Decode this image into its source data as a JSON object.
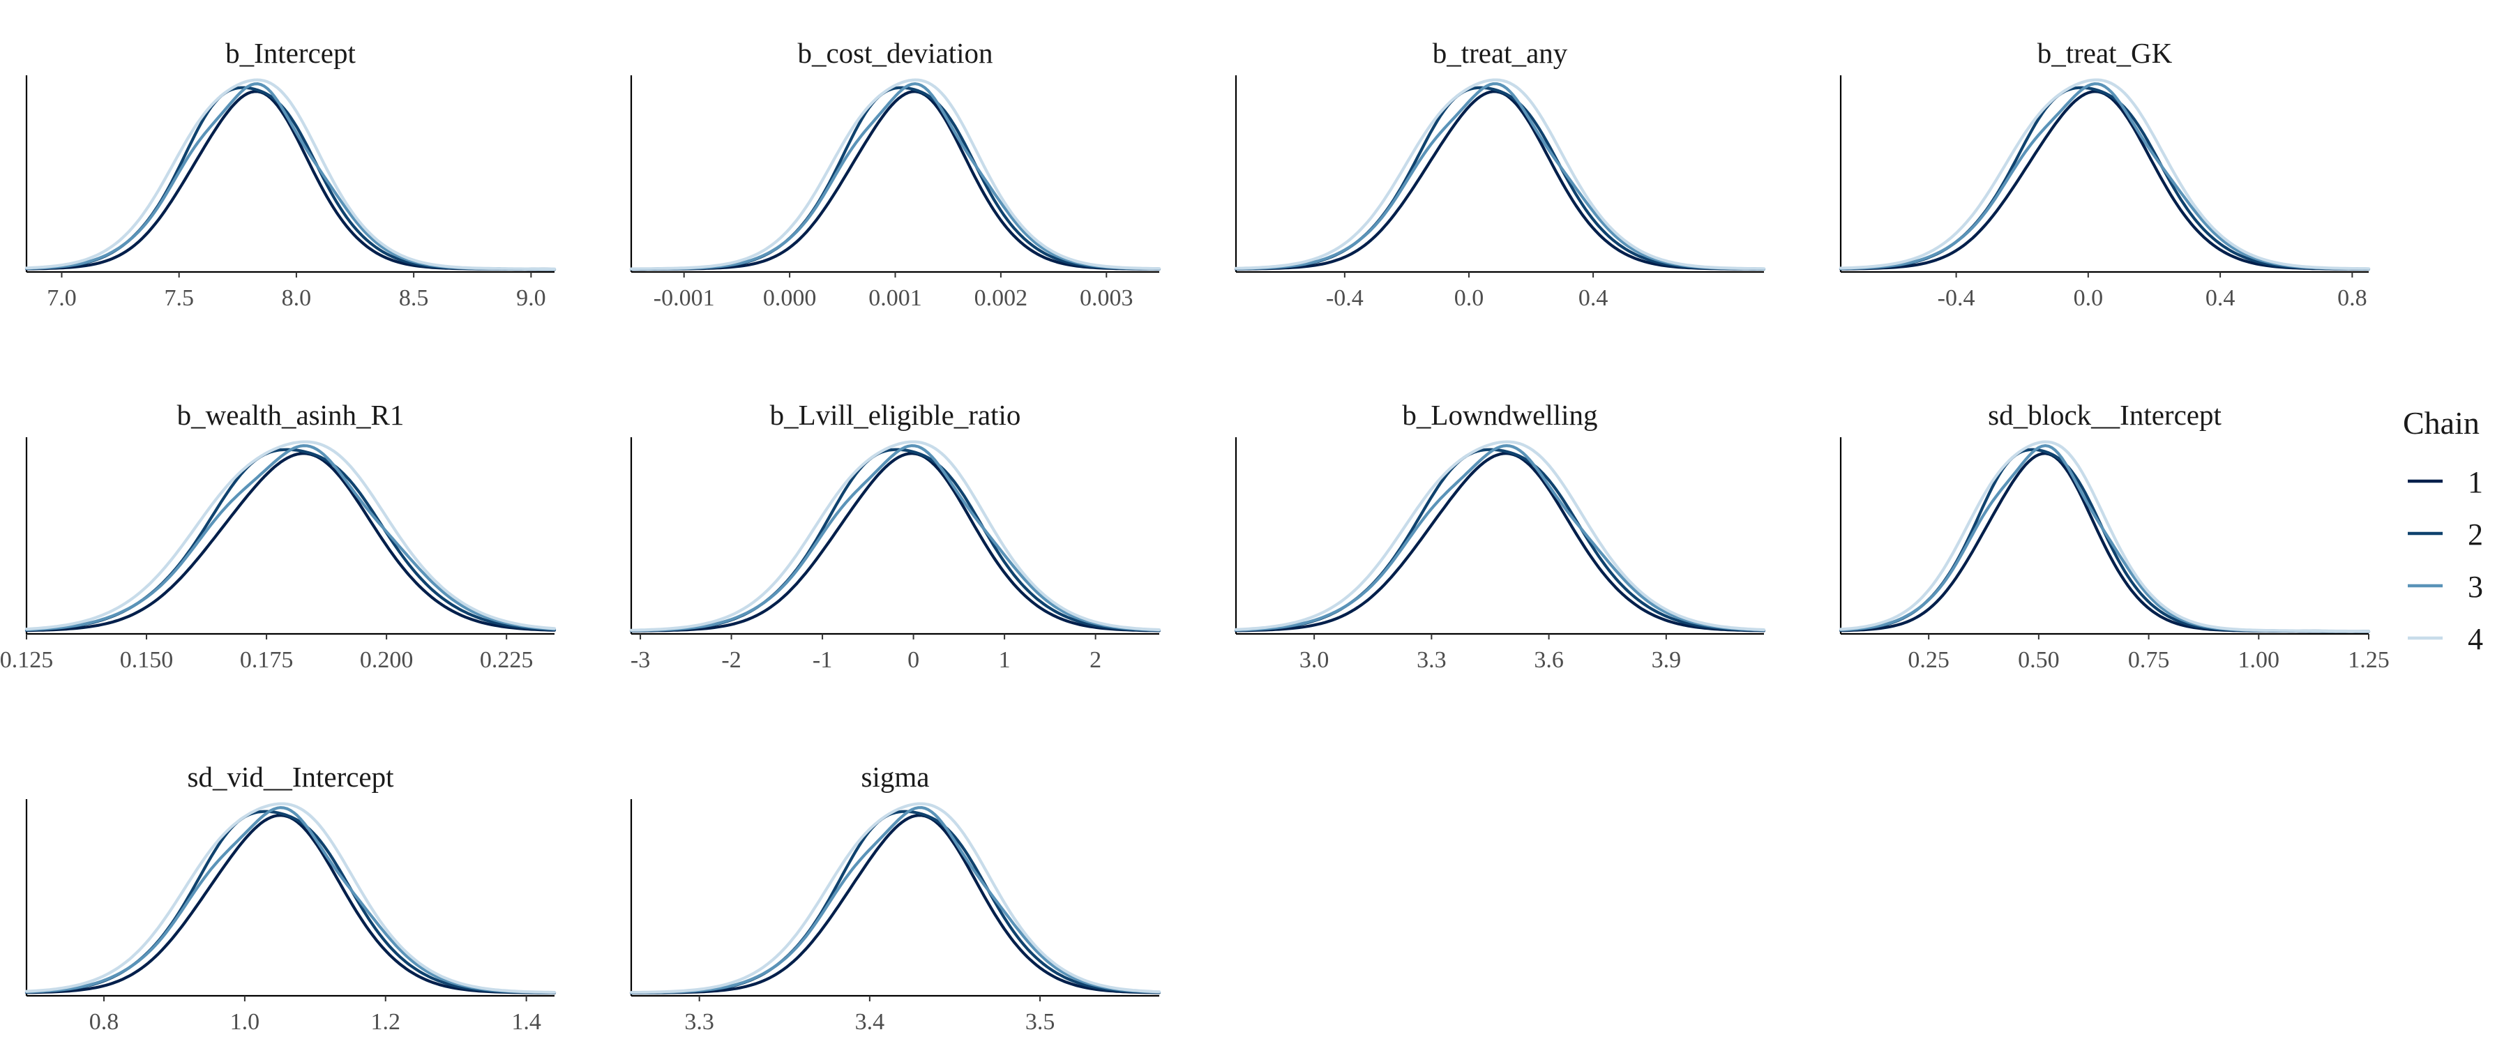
{
  "chart_data": [
    {
      "type": "line",
      "title": "b_Intercept",
      "xlim": [
        6.85,
        9.1
      ],
      "ticks": [
        7.0,
        7.5,
        8.0,
        8.5,
        9.0
      ],
      "tick_labels": [
        "7.0",
        "7.5",
        "8.0",
        "8.5",
        "9.0"
      ],
      "mean": 7.8,
      "sd": 0.26,
      "xmin": 6.85,
      "xmax": 9.1
    },
    {
      "type": "line",
      "title": "b_cost_deviation",
      "xlim": [
        -0.0015,
        0.0035
      ],
      "ticks": [
        -0.001,
        0.0,
        0.001,
        0.002,
        0.003
      ],
      "tick_labels": [
        "-0.001",
        "0.000",
        "0.001",
        "0.002",
        "0.003"
      ],
      "mean": 0.00112,
      "sd": 0.00058,
      "xmin": -0.0015,
      "xmax": 0.0035
    },
    {
      "type": "line",
      "title": "b_treat_any",
      "xlim": [
        -0.75,
        0.95
      ],
      "ticks": [
        -0.4,
        0.0,
        0.4
      ],
      "tick_labels": [
        "-0.4",
        "0.0",
        "0.4"
      ],
      "mean": 0.06,
      "sd": 0.21,
      "xmin": -0.75,
      "xmax": 0.95
    },
    {
      "type": "line",
      "title": "b_treat_GK",
      "xlim": [
        -0.75,
        0.85
      ],
      "ticks": [
        -0.4,
        0.0,
        0.4,
        0.8
      ],
      "tick_labels": [
        "-0.4",
        "0.0",
        "0.4",
        "0.8"
      ],
      "mean": 0.0,
      "sd": 0.2,
      "xmin": -0.75,
      "xmax": 0.85
    },
    {
      "type": "line",
      "title": "b_wealth_asinh_R1",
      "xlim": [
        0.125,
        0.235
      ],
      "ticks": [
        0.125,
        0.15,
        0.175,
        0.2,
        0.225
      ],
      "tick_labels": [
        "0.125",
        "0.150",
        "0.175",
        "0.200",
        "0.225"
      ],
      "mean": 0.181,
      "sd": 0.0165,
      "xmin": 0.125,
      "xmax": 0.235
    },
    {
      "type": "line",
      "title": "b_Lvill_eligible_ratio",
      "xlim": [
        -3.1,
        2.7
      ],
      "ticks": [
        -3,
        -2,
        -1,
        0,
        1,
        2
      ],
      "tick_labels": [
        "-3",
        "-2",
        "-1",
        "0",
        "1",
        "2"
      ],
      "mean": -0.1,
      "sd": 0.78,
      "xmin": -3.1,
      "xmax": 2.7
    },
    {
      "type": "line",
      "title": "b_Lowndwelling",
      "xlim": [
        2.8,
        4.15
      ],
      "ticks": [
        3.0,
        3.3,
        3.6,
        3.9
      ],
      "tick_labels": [
        "3.0",
        "3.3",
        "3.6",
        "3.9"
      ],
      "mean": 3.47,
      "sd": 0.19,
      "xmin": 2.8,
      "xmax": 4.15
    },
    {
      "type": "line",
      "title": "sd_block__Intercept",
      "xlim": [
        0.05,
        1.25
      ],
      "ticks": [
        0.25,
        0.5,
        0.75,
        1.0,
        1.25
      ],
      "tick_labels": [
        "0.25",
        "0.50",
        "0.75",
        "1.00",
        "1.25"
      ],
      "mean": 0.5,
      "sd": 0.13,
      "xmin": 0.05,
      "xmax": 1.25
    },
    {
      "type": "line",
      "title": "sd_vid__Intercept",
      "xlim": [
        0.69,
        1.44
      ],
      "ticks": [
        0.8,
        1.0,
        1.2,
        1.4
      ],
      "tick_labels": [
        "0.8",
        "1.0",
        "1.2",
        "1.4"
      ],
      "mean": 1.04,
      "sd": 0.1,
      "xmin": 0.69,
      "xmax": 1.44
    },
    {
      "type": "line",
      "title": "sigma",
      "xlim": [
        3.26,
        3.57
      ],
      "ticks": [
        3.3,
        3.4,
        3.5
      ],
      "tick_labels": [
        "3.3",
        "3.4",
        "3.5"
      ],
      "mean": 3.425,
      "sd": 0.04,
      "xmin": 3.26,
      "xmax": 3.57
    }
  ],
  "legend": {
    "title": "Chain",
    "placement": "right",
    "entries": [
      {
        "label": "1",
        "color": "#011f4b"
      },
      {
        "label": "2",
        "color": "#0f426e"
      },
      {
        "label": "3",
        "color": "#5a93b8"
      },
      {
        "label": "4",
        "color": "#c8dcea"
      }
    ]
  }
}
